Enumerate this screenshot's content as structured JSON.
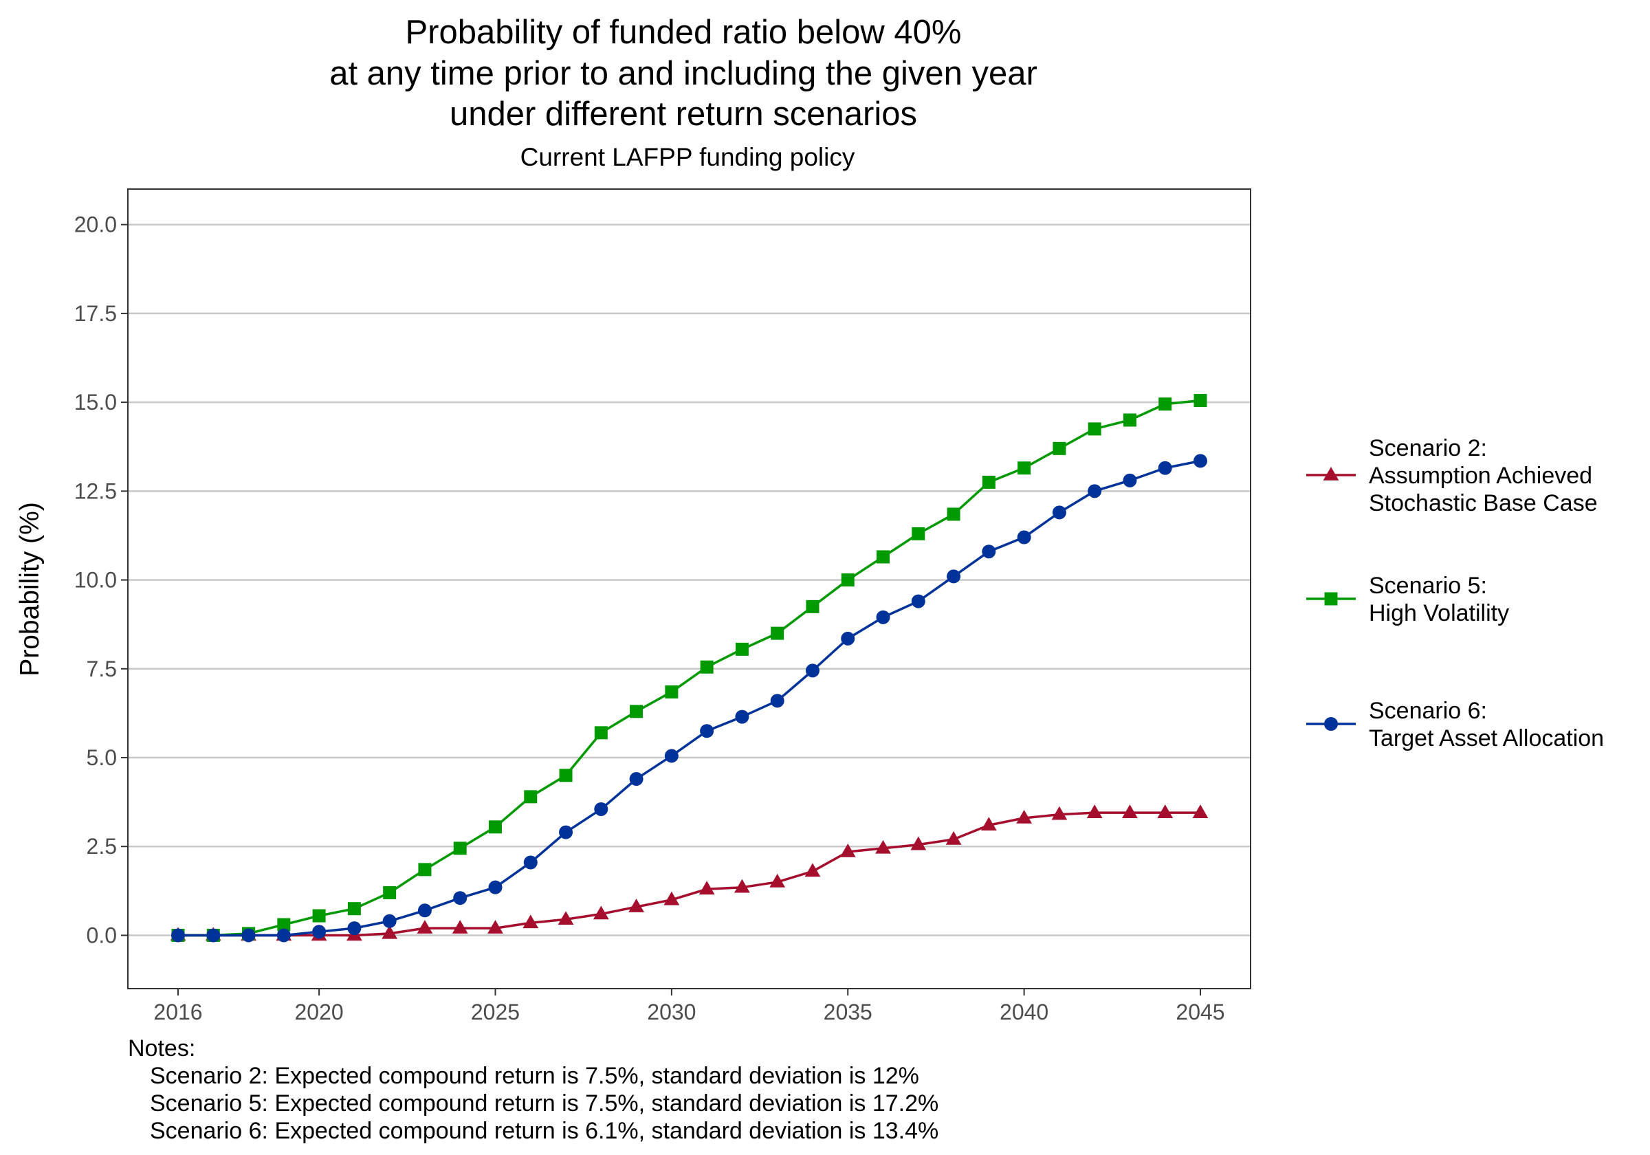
{
  "chart_data": {
    "type": "line",
    "title_lines": [
      "Probability of funded ratio below 40%",
      "at any time prior to and including the given year",
      "under different return scenarios"
    ],
    "subtitle": "Current LAFPP funding policy",
    "xlabel": "",
    "ylabel": "Probability (%)",
    "xlim": [
      2016,
      2045
    ],
    "ylim": [
      -1.5,
      21
    ],
    "x_ticks": [
      "2016",
      "2020",
      "2025",
      "2030",
      "2035",
      "2040",
      "2045"
    ],
    "y_ticks": [
      "0.0",
      "2.5",
      "5.0",
      "7.5",
      "10.0",
      "12.5",
      "15.0",
      "17.5",
      "20.0"
    ],
    "grid": "horizontal-major",
    "legend_position": "right",
    "x": [
      2016,
      2017,
      2018,
      2019,
      2020,
      2021,
      2022,
      2023,
      2024,
      2025,
      2026,
      2027,
      2028,
      2029,
      2030,
      2031,
      2032,
      2033,
      2034,
      2035,
      2036,
      2037,
      2038,
      2039,
      2040,
      2041,
      2042,
      2043,
      2044,
      2045
    ],
    "series": [
      {
        "legend_lines": [
          "Scenario 2:",
          "Assumption Achieved",
          "Stochastic Base Case"
        ],
        "color": "#a50f2d",
        "marker": "triangle",
        "values": [
          0,
          0,
          0,
          0,
          0,
          0,
          0.05,
          0.2,
          0.2,
          0.2,
          0.35,
          0.45,
          0.6,
          0.8,
          1.0,
          1.3,
          1.35,
          1.5,
          1.8,
          2.35,
          2.45,
          2.55,
          2.7,
          3.1,
          3.3,
          3.4,
          3.45,
          3.45,
          3.45,
          3.45
        ]
      },
      {
        "legend_lines": [
          "Scenario 5:",
          "High Volatility"
        ],
        "color": "#009a00",
        "marker": "square",
        "values": [
          0,
          0,
          0.05,
          0.3,
          0.55,
          0.75,
          1.2,
          1.85,
          2.45,
          3.05,
          3.9,
          4.5,
          5.7,
          6.3,
          6.85,
          7.55,
          8.05,
          8.5,
          9.25,
          10.0,
          10.65,
          11.3,
          11.85,
          12.75,
          13.15,
          13.7,
          14.25,
          14.5,
          14.95,
          15.05
        ]
      },
      {
        "legend_lines": [
          "Scenario 6:",
          "Target Asset Allocation"
        ],
        "color": "#003399",
        "marker": "circle",
        "values": [
          0,
          0,
          0,
          0,
          0.1,
          0.2,
          0.4,
          0.7,
          1.05,
          1.35,
          2.05,
          2.9,
          3.55,
          4.4,
          5.05,
          5.75,
          6.15,
          6.6,
          7.45,
          8.35,
          8.95,
          9.4,
          10.1,
          10.8,
          11.2,
          11.9,
          12.5,
          12.8,
          13.15,
          13.35
        ]
      }
    ],
    "notes_title": "Notes:",
    "notes": [
      "Scenario 2: Expected compound return is 7.5%, standard deviation is 12%",
      "Scenario 5: Expected compound return is 7.5%, standard deviation is 17.2%",
      "Scenario 6: Expected compound return is 6.1%, standard deviation is 13.4%"
    ]
  }
}
